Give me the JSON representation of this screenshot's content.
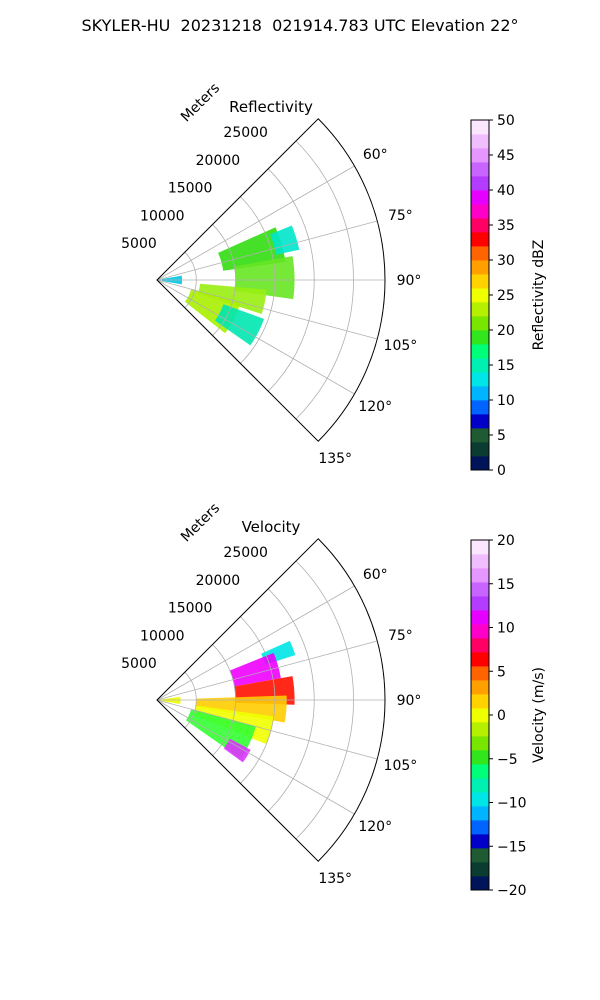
{
  "title": "SKYLER-HU  20231218  021914.783 UTC Elevation 22°",
  "chart_data": [
    {
      "type": "polar-sector",
      "title": "Reflectivity",
      "range_label": "Meters",
      "range_ticks": [
        "5000",
        "10000",
        "15000",
        "20000",
        "25000"
      ],
      "range_tick_values": [
        5000,
        10000,
        15000,
        20000,
        25000
      ],
      "rmax": 29000,
      "azimuth_range_deg": [
        45,
        135
      ],
      "azimuth_tick_values": [
        60,
        75,
        90,
        105,
        120,
        135
      ],
      "azimuth_tick_labels": [
        "60°",
        "75°",
        "90°",
        "105°",
        "120°",
        "135°"
      ],
      "grid": true,
      "colorbar": {
        "label": "Reflectivity dBZ",
        "min": 0,
        "max": 50,
        "ticks": [
          "0",
          "5",
          "10",
          "15",
          "20",
          "25",
          "30",
          "35",
          "40",
          "45",
          "50"
        ],
        "tick_values": [
          0,
          5,
          10,
          15,
          20,
          25,
          30,
          35,
          40,
          45,
          50
        ],
        "colors": [
          "#00145a",
          "#0a3c32",
          "#1e5a32",
          "#0000c8",
          "#0064ff",
          "#00b4ff",
          "#00e6e6",
          "#00f0b4",
          "#00ff78",
          "#32e61e",
          "#78e600",
          "#b4f000",
          "#f0ff00",
          "#ffd200",
          "#ffa000",
          "#ff6400",
          "#ff0000",
          "#ff0064",
          "#ff00c8",
          "#e600ff",
          "#b43cff",
          "#c864ff",
          "#e696ff",
          "#f0beff",
          "#fae6ff"
        ]
      },
      "echo_regions": [
        {
          "az": [
            66,
            82
          ],
          "r": [
            8500,
            16500
          ],
          "color": "#33dd11"
        },
        {
          "az": [
            80,
            98
          ],
          "r": [
            10000,
            17500
          ],
          "color": "#66e622"
        },
        {
          "az": [
            95,
            108
          ],
          "r": [
            5500,
            14000
          ],
          "color": "#99ee11"
        },
        {
          "az": [
            105,
            128
          ],
          "r": [
            4500,
            11000
          ],
          "color": "#aaee00"
        },
        {
          "az": [
            110,
            125
          ],
          "r": [
            9000,
            14500
          ],
          "color": "#00e6b0"
        },
        {
          "az": [
            68,
            78
          ],
          "r": [
            15500,
            18500
          ],
          "color": "#00e6cc"
        },
        {
          "az": [
            80,
            100
          ],
          "r": [
            600,
            3200
          ],
          "color": "#00c8e6"
        }
      ]
    },
    {
      "type": "polar-sector",
      "title": "Velocity",
      "range_label": "Meters",
      "range_ticks": [
        "5000",
        "10000",
        "15000",
        "20000",
        "25000"
      ],
      "range_tick_values": [
        5000,
        10000,
        15000,
        20000,
        25000
      ],
      "rmax": 29000,
      "azimuth_range_deg": [
        45,
        135
      ],
      "azimuth_tick_values": [
        60,
        75,
        90,
        105,
        120,
        135
      ],
      "azimuth_tick_labels": [
        "60°",
        "75°",
        "90°",
        "105°",
        "120°",
        "135°"
      ],
      "grid": true,
      "colorbar": {
        "label": "Velocity (m/s)",
        "min": -20,
        "max": 20,
        "ticks": [
          "−20",
          "−15",
          "−10",
          "−5",
          "0",
          "5",
          "10",
          "15",
          "20"
        ],
        "tick_values": [
          -20,
          -15,
          -10,
          -5,
          0,
          5,
          10,
          15,
          20
        ],
        "colors": [
          "#00145a",
          "#0a3c32",
          "#1e5a32",
          "#0000c8",
          "#0064ff",
          "#00b4ff",
          "#00e6e6",
          "#00f0b4",
          "#00ff78",
          "#32e61e",
          "#78e600",
          "#b4f000",
          "#f0ff00",
          "#ffd200",
          "#ffa000",
          "#ff6400",
          "#ff0000",
          "#ff0064",
          "#ff00c8",
          "#e600ff",
          "#b43cff",
          "#c864ff",
          "#e696ff",
          "#f0beff",
          "#fae6ff"
        ]
      },
      "echo_regions": [
        {
          "az": [
            66,
            72
          ],
          "r": [
            14500,
            18500
          ],
          "color": "#00e6e6"
        },
        {
          "az": [
            68,
            80
          ],
          "r": [
            10000,
            16000
          ],
          "color": "#ee00ff"
        },
        {
          "az": [
            80,
            92
          ],
          "r": [
            10000,
            17500
          ],
          "color": "#ff1100"
        },
        {
          "az": [
            88,
            100
          ],
          "r": [
            5000,
            16500
          ],
          "color": "#ffcc00"
        },
        {
          "az": [
            98,
            112
          ],
          "r": [
            5000,
            15000
          ],
          "color": "#f0ff00"
        },
        {
          "az": [
            105,
            125
          ],
          "r": [
            4500,
            13000
          ],
          "color": "#33ff33"
        },
        {
          "az": [
            118,
            126
          ],
          "r": [
            10500,
            13500
          ],
          "color": "#dd33ff"
        },
        {
          "az": [
            82,
            100
          ],
          "r": [
            600,
            3000
          ],
          "color": "#eeff00"
        }
      ]
    }
  ]
}
